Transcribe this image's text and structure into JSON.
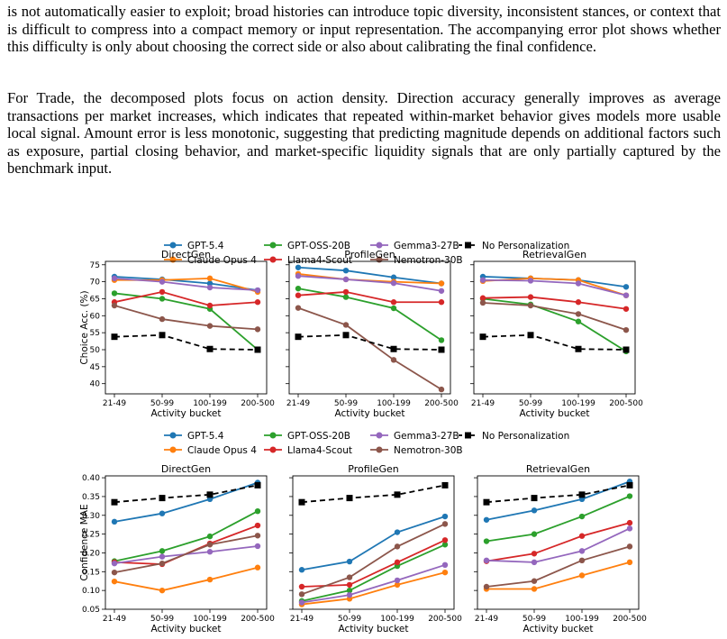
{
  "paragraphs": [
    "is not automatically easier to exploit; broad histories can introduce topic diversity, inconsistent stances, or context that is difficult to compress into a compact memory or input representation. The accompanying error plot shows whether this difficulty is only about choosing the correct side or also about calibrating the final confidence.",
    "For Trade, the decomposed plots focus on action density. Direction accuracy generally improves as average transactions per market increases, which indicates that repeated within-market behavior gives models more usable local signal. Amount error is less monotonic, suggesting that predicting magnitude depends on additional factors such as exposure, partial closing behavior, and market-specific liquidity signals that are only partially captured by the benchmark input."
  ],
  "legend": [
    {
      "name": "GPT-5.4",
      "color": "#1f77b4",
      "marker": "circle",
      "dash": false
    },
    {
      "name": "Claude Opus 4",
      "color": "#ff7f0e",
      "marker": "circle",
      "dash": false
    },
    {
      "name": "GPT-OSS-20B",
      "color": "#2ca02c",
      "marker": "circle",
      "dash": false
    },
    {
      "name": "Llama4-Scout",
      "color": "#d62728",
      "marker": "circle",
      "dash": false
    },
    {
      "name": "Gemma3-27B",
      "color": "#9467bd",
      "marker": "circle",
      "dash": false
    },
    {
      "name": "Nemotron-30B",
      "color": "#8c564b",
      "marker": "circle",
      "dash": false
    },
    {
      "name": "No Personalization",
      "color": "#000000",
      "marker": "square",
      "dash": true
    }
  ],
  "chart_data": [
    {
      "type": "line",
      "title": "DirectGen",
      "xlabel": "Activity bucket",
      "ylabel": "Choice Acc. (%)",
      "categories": [
        "21-49",
        "50-99",
        "100-199",
        "200-500"
      ],
      "ylim": [
        37,
        76
      ],
      "yticks": [
        40,
        45,
        50,
        55,
        60,
        65,
        70,
        75
      ],
      "series": [
        {
          "name": "GPT-5.4",
          "values": [
            71.5,
            70.7,
            69.5,
            67.5
          ]
        },
        {
          "name": "Claude Opus 4",
          "values": [
            70.5,
            70.5,
            71.0,
            67.0
          ]
        },
        {
          "name": "GPT-OSS-20B",
          "values": [
            66.6,
            65.0,
            62.0,
            50.0
          ]
        },
        {
          "name": "Llama4-Scout",
          "values": [
            64.0,
            67.0,
            63.0,
            64.0
          ]
        },
        {
          "name": "Gemma3-27B",
          "values": [
            71.0,
            70.0,
            68.3,
            67.5
          ]
        },
        {
          "name": "Nemotron-30B",
          "values": [
            63.0,
            59.0,
            57.0,
            56.0
          ]
        },
        {
          "name": "No Personalization",
          "values": [
            53.8,
            54.3,
            50.2,
            50.0
          ]
        }
      ]
    },
    {
      "type": "line",
      "title": "ProfileGen",
      "xlabel": "Activity bucket",
      "ylabel": "",
      "categories": [
        "21-49",
        "50-99",
        "100-199",
        "200-500"
      ],
      "ylim": [
        37,
        76
      ],
      "yticks": [
        40,
        45,
        50,
        55,
        60,
        65,
        70,
        75
      ],
      "series": [
        {
          "name": "GPT-5.4",
          "values": [
            74.2,
            73.3,
            71.3,
            69.5
          ]
        },
        {
          "name": "Claude Opus 4",
          "values": [
            72.3,
            70.7,
            70.0,
            69.5
          ]
        },
        {
          "name": "GPT-OSS-20B",
          "values": [
            68.0,
            65.5,
            62.2,
            52.8
          ]
        },
        {
          "name": "Llama4-Scout",
          "values": [
            66.0,
            67.0,
            64.0,
            64.0
          ]
        },
        {
          "name": "Gemma3-27B",
          "values": [
            71.7,
            70.7,
            69.6,
            67.3
          ]
        },
        {
          "name": "Nemotron-30B",
          "values": [
            62.3,
            57.3,
            47.0,
            38.3
          ]
        },
        {
          "name": "No Personalization",
          "values": [
            53.8,
            54.3,
            50.2,
            50.0
          ]
        }
      ]
    },
    {
      "type": "line",
      "title": "RetrievalGen",
      "xlabel": "Activity bucket",
      "ylabel": "",
      "categories": [
        "21-49",
        "50-99",
        "100-199",
        "200-500"
      ],
      "ylim": [
        37,
        76
      ],
      "yticks": [
        40,
        45,
        50,
        55,
        60,
        65,
        70,
        75
      ],
      "series": [
        {
          "name": "GPT-5.4",
          "values": [
            71.5,
            71.0,
            70.5,
            68.5
          ]
        },
        {
          "name": "Claude Opus 4",
          "values": [
            70.2,
            71.0,
            70.5,
            66.0
          ]
        },
        {
          "name": "GPT-OSS-20B",
          "values": [
            65.0,
            63.3,
            58.3,
            49.5
          ]
        },
        {
          "name": "Llama4-Scout",
          "values": [
            65.2,
            65.5,
            64.0,
            62.0
          ]
        },
        {
          "name": "Gemma3-27B",
          "values": [
            70.5,
            70.3,
            69.5,
            66.0
          ]
        },
        {
          "name": "Nemotron-30B",
          "values": [
            63.8,
            63.0,
            60.5,
            55.8
          ]
        },
        {
          "name": "No Personalization",
          "values": [
            53.8,
            54.3,
            50.2,
            50.0
          ]
        }
      ]
    },
    {
      "type": "line",
      "title": "DirectGen",
      "xlabel": "Activity bucket",
      "ylabel": "Confidence MAE",
      "categories": [
        "21-49",
        "50-99",
        "100-199",
        "200-500"
      ],
      "ylim": [
        0.05,
        0.405
      ],
      "yticks": [
        "0.05",
        "0.10",
        "0.15",
        "0.20",
        "0.25",
        "0.30",
        "0.35",
        "0.40"
      ],
      "series": [
        {
          "name": "GPT-5.4",
          "values": [
            0.283,
            0.305,
            0.343,
            0.387
          ]
        },
        {
          "name": "Claude Opus 4",
          "values": [
            0.124,
            0.1,
            0.129,
            0.161
          ]
        },
        {
          "name": "GPT-OSS-20B",
          "values": [
            0.178,
            0.205,
            0.244,
            0.311
          ]
        },
        {
          "name": "Llama4-Scout",
          "values": [
            0.175,
            0.17,
            0.225,
            0.273
          ]
        },
        {
          "name": "Gemma3-27B",
          "values": [
            0.172,
            0.19,
            0.203,
            0.218
          ]
        },
        {
          "name": "Nemotron-30B",
          "values": [
            0.148,
            0.172,
            0.222,
            0.246
          ]
        },
        {
          "name": "No Personalization",
          "values": [
            0.335,
            0.346,
            0.355,
            0.38
          ]
        }
      ]
    },
    {
      "type": "line",
      "title": "ProfileGen",
      "xlabel": "Activity bucket",
      "ylabel": "",
      "categories": [
        "21-49",
        "50-99",
        "100-199",
        "200-500"
      ],
      "ylim": [
        0.05,
        0.405
      ],
      "yticks": [
        "0.05",
        "0.10",
        "0.15",
        "0.20",
        "0.25",
        "0.30",
        "0.35",
        "0.40"
      ],
      "series": [
        {
          "name": "GPT-5.4",
          "values": [
            0.155,
            0.177,
            0.255,
            0.297
          ]
        },
        {
          "name": "Claude Opus 4",
          "values": [
            0.063,
            0.078,
            0.115,
            0.148
          ]
        },
        {
          "name": "GPT-OSS-20B",
          "values": [
            0.072,
            0.1,
            0.165,
            0.222
          ]
        },
        {
          "name": "Llama4-Scout",
          "values": [
            0.11,
            0.115,
            0.175,
            0.234
          ]
        },
        {
          "name": "Gemma3-27B",
          "values": [
            0.068,
            0.088,
            0.127,
            0.168
          ]
        },
        {
          "name": "Nemotron-30B",
          "values": [
            0.09,
            0.135,
            0.217,
            0.277
          ]
        },
        {
          "name": "No Personalization",
          "values": [
            0.335,
            0.346,
            0.355,
            0.38
          ]
        }
      ]
    },
    {
      "type": "line",
      "title": "RetrievalGen",
      "xlabel": "Activity bucket",
      "ylabel": "",
      "categories": [
        "21-49",
        "50-99",
        "100-199",
        "200-500"
      ],
      "ylim": [
        0.05,
        0.405
      ],
      "yticks": [
        "0.05",
        "0.10",
        "0.15",
        "0.20",
        "0.25",
        "0.30",
        "0.35",
        "0.40"
      ],
      "series": [
        {
          "name": "GPT-5.4",
          "values": [
            0.288,
            0.313,
            0.343,
            0.39
          ]
        },
        {
          "name": "Claude Opus 4",
          "values": [
            0.104,
            0.104,
            0.14,
            0.175
          ]
        },
        {
          "name": "GPT-OSS-20B",
          "values": [
            0.231,
            0.25,
            0.297,
            0.351
          ]
        },
        {
          "name": "Llama4-Scout",
          "values": [
            0.178,
            0.198,
            0.245,
            0.28
          ]
        },
        {
          "name": "Gemma3-27B",
          "values": [
            0.18,
            0.175,
            0.205,
            0.265
          ]
        },
        {
          "name": "Nemotron-30B",
          "values": [
            0.11,
            0.125,
            0.18,
            0.217
          ]
        },
        {
          "name": "No Personalization",
          "values": [
            0.335,
            0.346,
            0.355,
            0.38
          ]
        }
      ]
    }
  ]
}
